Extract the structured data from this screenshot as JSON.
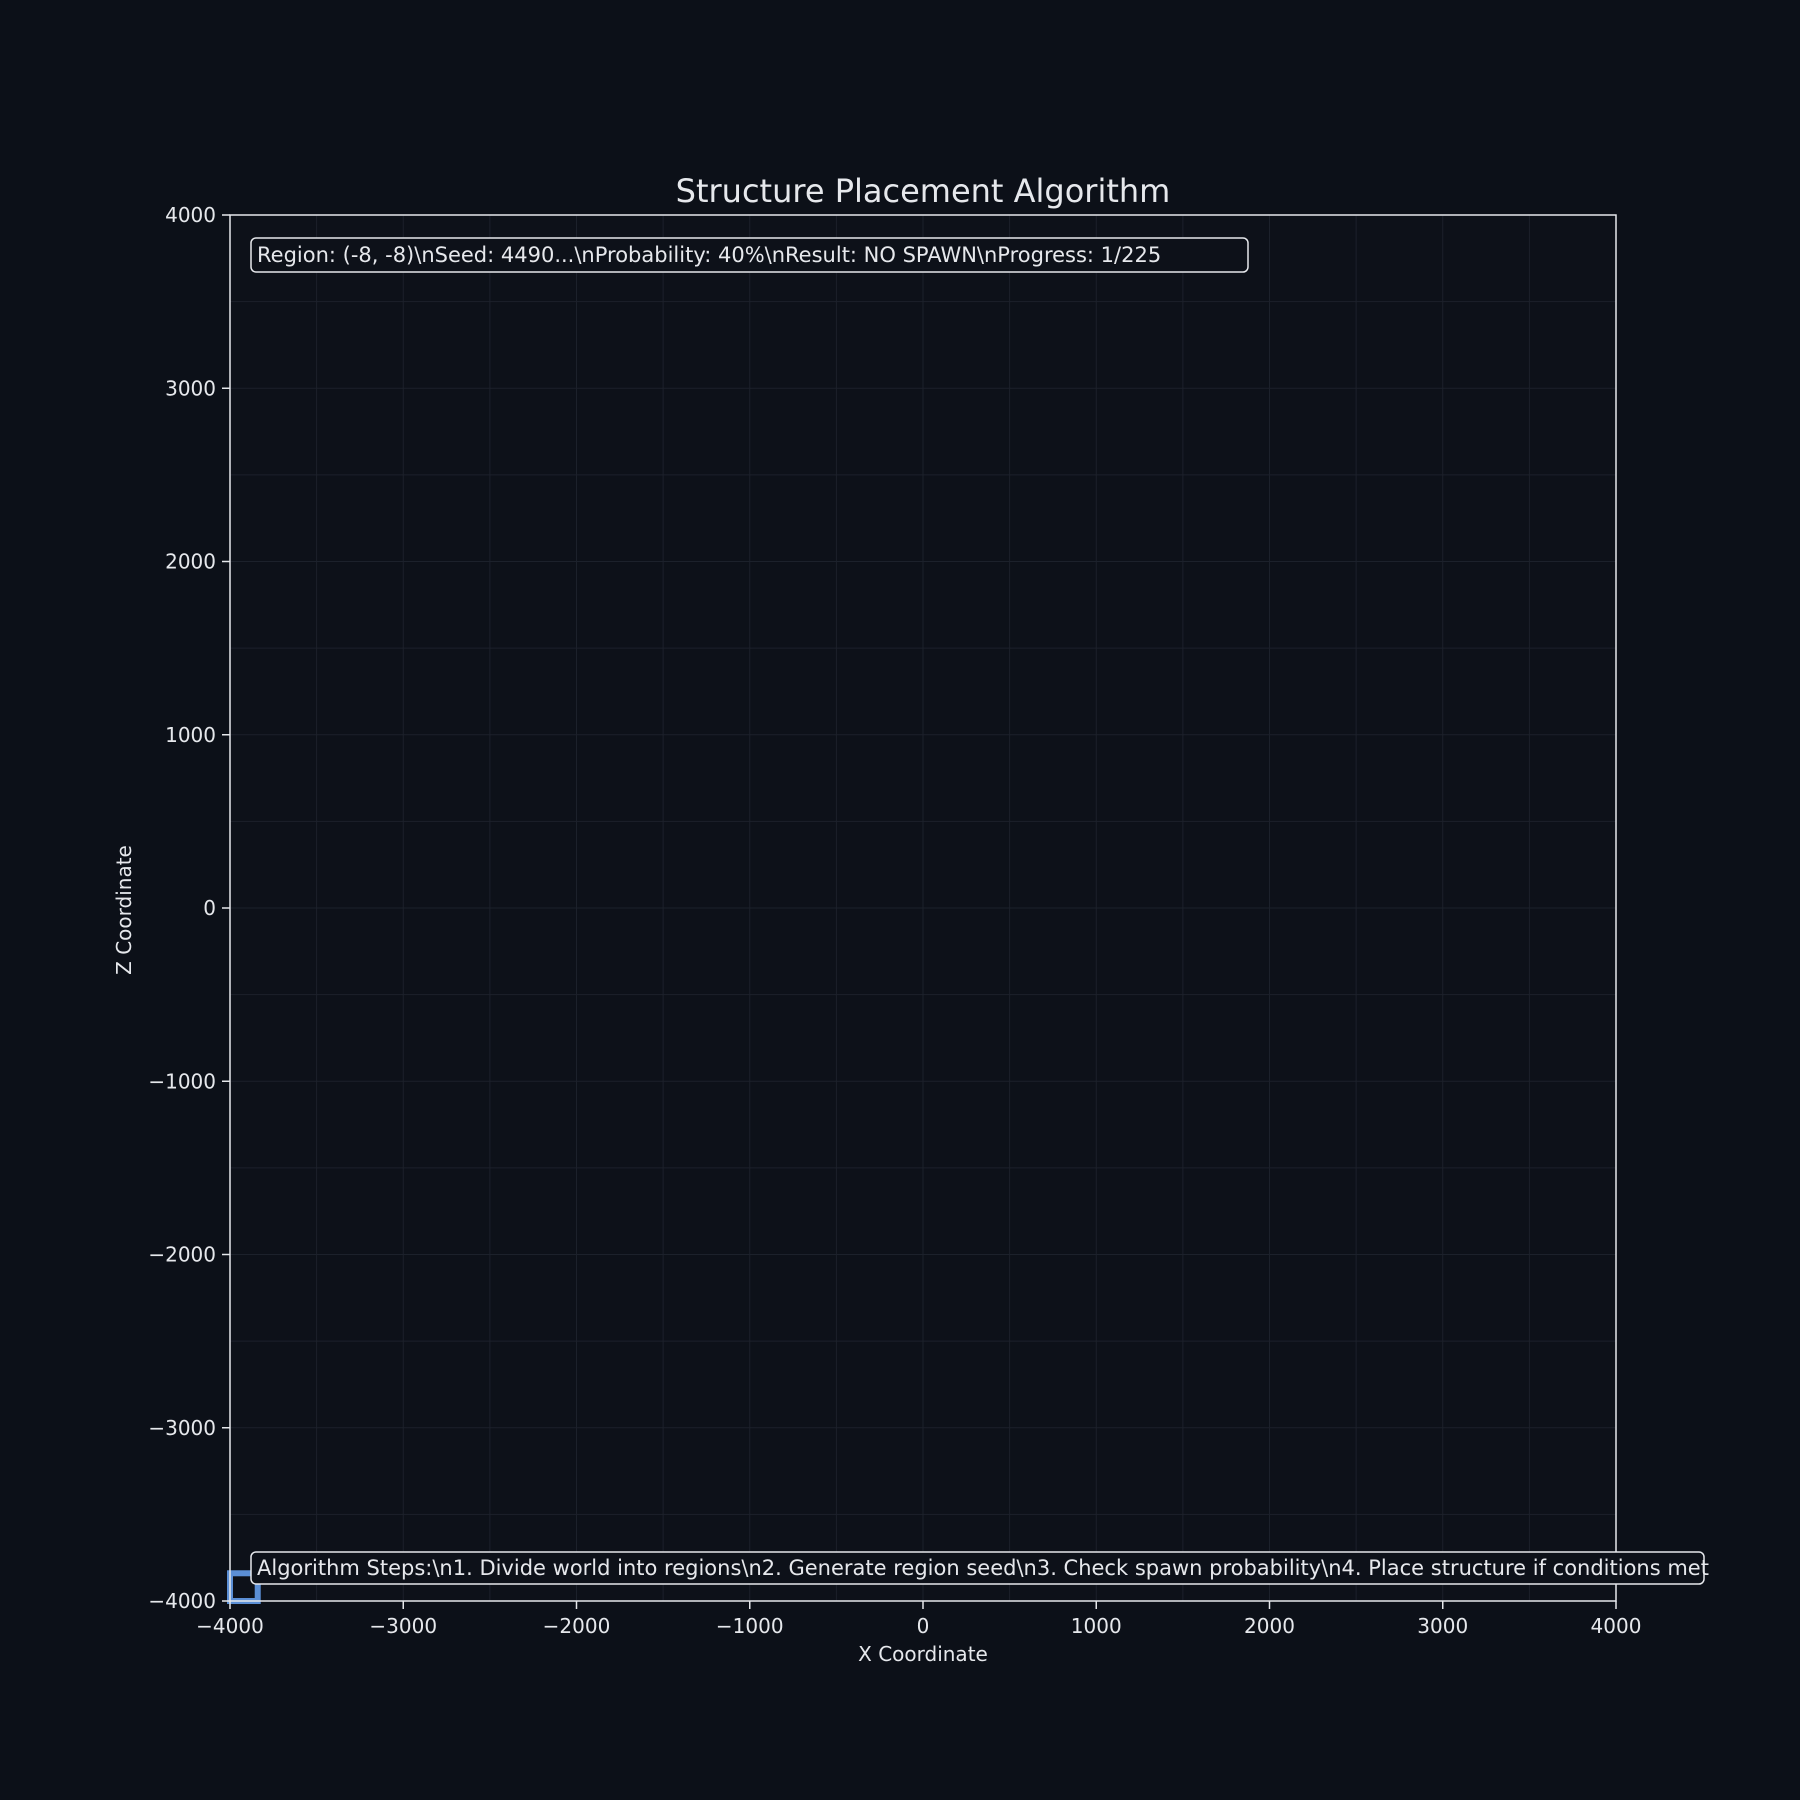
{
  "chart_data": {
    "type": "scatter",
    "title": "Structure Placement Algorithm",
    "xlabel": "X Coordinate",
    "ylabel": "Z Coordinate",
    "xlim": [
      -4000,
      4000
    ],
    "ylim": [
      -4000,
      4000
    ],
    "xticks": [
      -4000,
      -3000,
      -2000,
      -1000,
      0,
      1000,
      2000,
      3000,
      4000
    ],
    "yticks": [
      -4000,
      -3000,
      -2000,
      -1000,
      0,
      1000,
      2000,
      3000,
      4000
    ],
    "grid": true,
    "highlighted_region": {
      "x": [
        -4000,
        -3840
      ],
      "y": [
        -4000,
        -3840
      ]
    },
    "annotations": {
      "status": "Region: (-8, -8)\\nSeed: 4490...\\nProbability: 40%\\nResult: NO SPAWN\\nProgress: 1/225",
      "steps": "Algorithm Steps:\\n1. Divide world into regions\\n2. Generate region seed\\n3. Check spawn probability\\n4. Place structure if conditions met"
    }
  },
  "colors": {
    "background": "#0c1018",
    "axes_face": "#0d1119",
    "text": "#e6e8ec",
    "grid": "#1c212b",
    "highlight": "#5b8fd6"
  }
}
